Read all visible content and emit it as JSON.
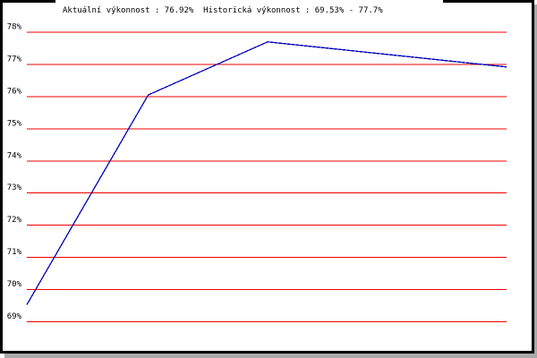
{
  "header": {
    "title": "Aktuální výkonnost : 76.92%  Historická výkonnost : 69.53% - 77.7%"
  },
  "window": {
    "background": "#ffffff",
    "border_color": "#000000",
    "shadow_color": "#a9a9a9"
  },
  "chart_data": {
    "type": "line",
    "title": "Aktuální výkonnost : 76.92%  Historická výkonnost : 69.53% - 77.7%",
    "current_performance": "76.92%",
    "historical_min": "69.53%",
    "historical_max": "77.7%",
    "xlabel": "",
    "ylabel": "",
    "ylim": [
      69,
      78
    ],
    "grid": true,
    "gridline_color": "#ee0000",
    "x_ticks": [],
    "y_ticks": [
      {
        "value": 78,
        "label": "78%"
      },
      {
        "value": 77,
        "label": "77%"
      },
      {
        "value": 76,
        "label": "76%"
      },
      {
        "value": 75,
        "label": "75%"
      },
      {
        "value": 74,
        "label": "74%"
      },
      {
        "value": 73,
        "label": "73%"
      },
      {
        "value": 72,
        "label": "72%"
      },
      {
        "value": 71,
        "label": "71%"
      },
      {
        "value": 70,
        "label": "70%"
      },
      {
        "value": 69,
        "label": "69%"
      }
    ],
    "series": [
      {
        "name": "vykonnost",
        "color": "#0000bb",
        "points": [
          {
            "x": 0.0,
            "y": 69.53
          },
          {
            "x": 0.253,
            "y": 76.05
          },
          {
            "x": 0.502,
            "y": 77.7
          },
          {
            "x": 1.0,
            "y": 76.92
          }
        ]
      }
    ]
  }
}
